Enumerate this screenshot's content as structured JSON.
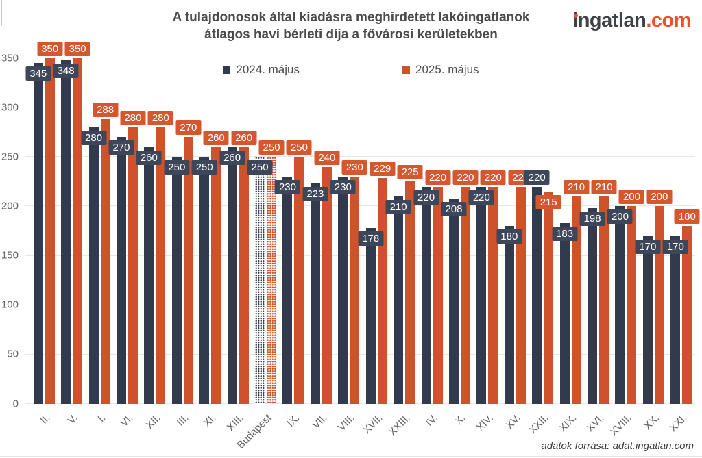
{
  "header": {
    "title_line1": "A tulajdonosok által kiadásra meghirdetett lakóingatlanok",
    "title_line2": "átlagos havi bérleti díja a fővárosi kerületekben",
    "logo": {
      "name": "ingatlan",
      "tld": ".com",
      "text_color": "#3f4347",
      "accent_color": "#f04e28"
    }
  },
  "legend": [
    {
      "label": "2024. május",
      "color": "#323b4d"
    },
    {
      "label": "2025. május",
      "color": "#d0522c"
    }
  ],
  "footer": {
    "credit": "adatok forrása: adat.ingatlan.com"
  },
  "chart_data": {
    "type": "bar",
    "title": "A tulajdonosok által kiadásra meghirdetett lakóingatlanok átlagos havi bérleti díja a fővárosi kerületekben",
    "xlabel": "",
    "ylabel": "",
    "ylim": [
      0,
      350
    ],
    "yticks": [
      0,
      50,
      100,
      150,
      200,
      250,
      300,
      350
    ],
    "grid": true,
    "legend_position": "top-center",
    "value_labels": true,
    "categories": [
      "II.",
      "V.",
      "I.",
      "VI.",
      "XII.",
      "III.",
      "XI.",
      "XIII.",
      "Budapest",
      "IX.",
      "VII.",
      "VIII.",
      "XVII.",
      "XXIII.",
      "IV.",
      "X.",
      "XIV.",
      "XV.",
      "XXII.",
      "XIX.",
      "XVI.",
      "XVIII.",
      "XX.",
      "XXI."
    ],
    "series": [
      {
        "name": "2024. május",
        "color": "#323b4d",
        "label_bg": "#3e4759",
        "values": [
          345,
          348,
          280,
          270,
          260,
          250,
          250,
          260,
          250,
          230,
          223,
          230,
          178,
          210,
          220,
          208,
          220,
          180,
          220,
          183,
          198,
          200,
          170,
          170
        ]
      },
      {
        "name": "2025. május",
        "color": "#d0522c",
        "label_bg": "#d4572e",
        "values": [
          350,
          350,
          288,
          280,
          280,
          270,
          260,
          260,
          250,
          250,
          240,
          230,
          229,
          225,
          220,
          220,
          220,
          220,
          215,
          210,
          210,
          200,
          200,
          180
        ]
      }
    ],
    "highlight": {
      "category": "Budapest",
      "style": "dotted-pattern"
    }
  }
}
